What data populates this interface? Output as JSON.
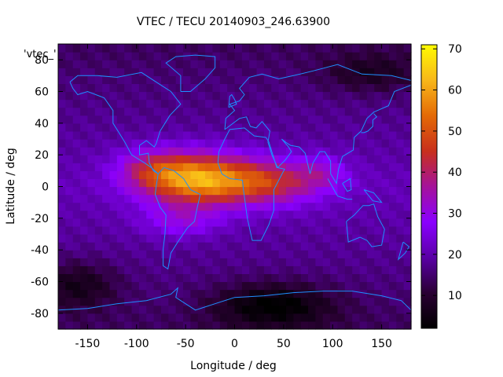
{
  "chart_data": {
    "type": "heatmap",
    "title": "VTEC / TECU 20140903_246.63900",
    "xlabel": "Longitude / deg",
    "ylabel": "Latitude / deg",
    "xlim": [
      -180,
      180
    ],
    "ylim": [
      -90,
      90
    ],
    "x_ticks": [
      -150,
      -100,
      -50,
      0,
      50,
      100,
      150
    ],
    "y_ticks": [
      -80,
      -60,
      -40,
      -20,
      0,
      20,
      40,
      60,
      80
    ],
    "x_tick_labels": [
      "-150",
      "-100",
      "-50",
      "0",
      "50",
      "100",
      "150"
    ],
    "y_tick_labels": [
      "-80",
      "-60",
      "-40",
      "-20",
      "0",
      "20",
      "40",
      "60",
      "80"
    ],
    "colorbar": {
      "range": [
        2,
        71
      ],
      "ticks": [
        10,
        20,
        30,
        40,
        50,
        60,
        70
      ],
      "tick_labels": [
        "10",
        "20",
        "30",
        "40",
        "50",
        "60",
        "70"
      ],
      "colormap": [
        "#000000",
        "#2a0033",
        "#5a00a6",
        "#8a00ff",
        "#a5129a",
        "#c8301c",
        "#e46a06",
        "#f8b71a",
        "#fffb00"
      ]
    },
    "key_label": "'vtec_'",
    "grid": false,
    "coastline_color": "#1e90ff",
    "features": [
      {
        "lon": -40,
        "lat": 5,
        "amp": 38,
        "slon": 55,
        "slat": 16
      },
      {
        "lon": 35,
        "lat": 3,
        "amp": 22,
        "slon": 55,
        "slat": 14
      },
      {
        "lon": -85,
        "lat": 12,
        "amp": 12,
        "slon": 35,
        "slat": 12
      },
      {
        "lon": -55,
        "lat": -22,
        "amp": 10,
        "slon": 40,
        "slat": 10
      },
      {
        "lon": 90,
        "lat": 10,
        "amp": 8,
        "slon": 25,
        "slat": 10
      },
      {
        "lon": 40,
        "lat": -75,
        "amp": -14,
        "slon": 60,
        "slat": 14
      },
      {
        "lon": -160,
        "lat": -62,
        "amp": -10,
        "slon": 40,
        "slat": 15
      },
      {
        "lon": 140,
        "lat": 72,
        "amp": -8,
        "slon": 50,
        "slat": 12
      }
    ],
    "background": {
      "base": 21,
      "lat_slope": -0.08,
      "min": 2,
      "max": 71
    }
  }
}
